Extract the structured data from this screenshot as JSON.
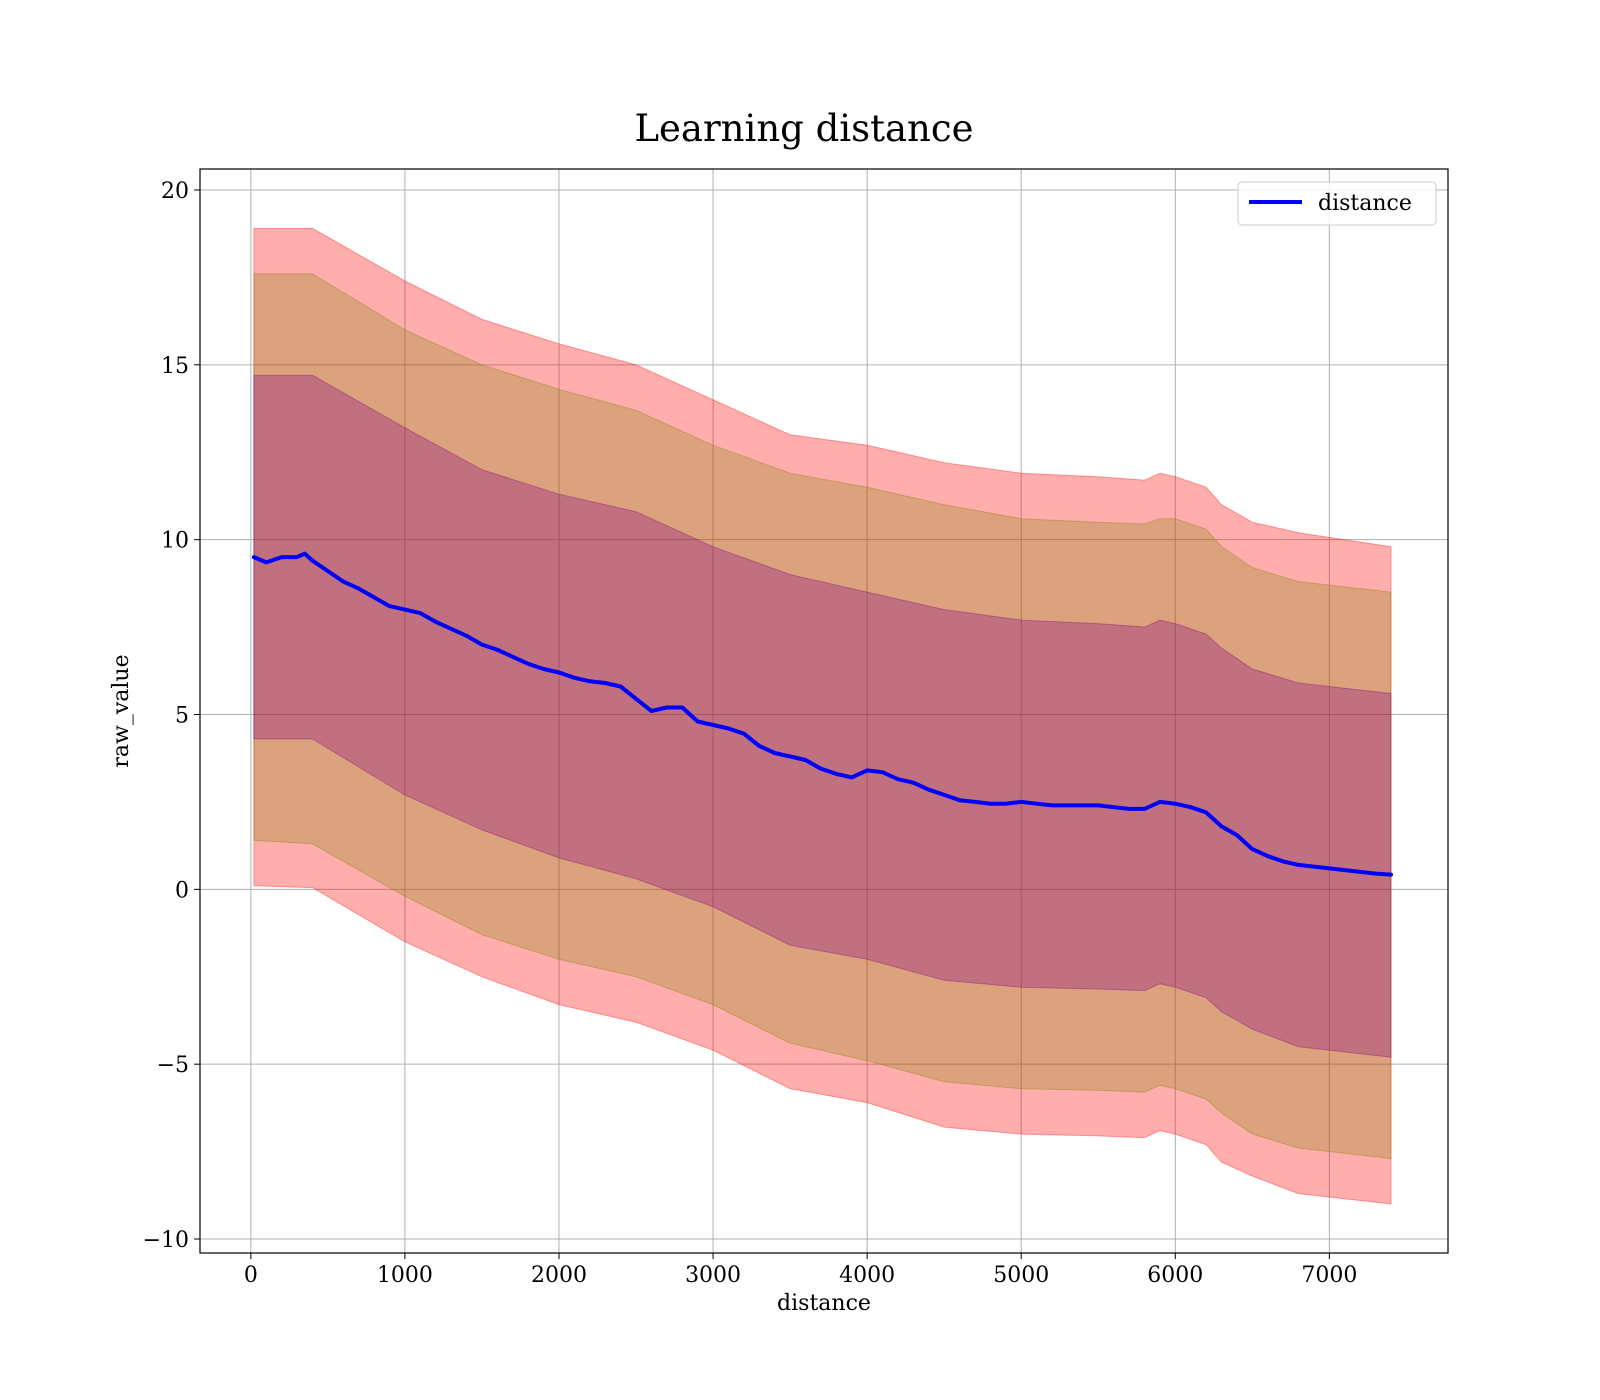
{
  "chart_data": {
    "type": "line",
    "title": "Learning distance",
    "xlabel": "distance",
    "ylabel": "raw_value",
    "xlim": [
      -330,
      7770
    ],
    "ylim": [
      -10.4,
      20.6
    ],
    "xticks": [
      0,
      1000,
      2000,
      3000,
      4000,
      5000,
      6000,
      7000
    ],
    "yticks": [
      -10,
      -5,
      0,
      5,
      10,
      15,
      20
    ],
    "ytick_labels": [
      "−10",
      "−5",
      "0",
      "5",
      "10",
      "15",
      "20"
    ],
    "grid": true,
    "legend_position": "top-right",
    "series": [
      {
        "name": "distance",
        "color": "#0000ff",
        "x": [
          20,
          100,
          200,
          300,
          350,
          400,
          500,
          600,
          700,
          800,
          900,
          1000,
          1100,
          1200,
          1300,
          1400,
          1500,
          1600,
          1700,
          1800,
          1900,
          2000,
          2100,
          2200,
          2300,
          2400,
          2500,
          2600,
          2700,
          2800,
          2900,
          3000,
          3100,
          3200,
          3300,
          3400,
          3500,
          3600,
          3700,
          3800,
          3900,
          4000,
          4100,
          4200,
          4300,
          4400,
          4500,
          4600,
          4700,
          4800,
          4900,
          5000,
          5100,
          5200,
          5300,
          5400,
          5500,
          5600,
          5700,
          5800,
          5900,
          6000,
          6100,
          6200,
          6300,
          6400,
          6500,
          6600,
          6700,
          6800,
          6900,
          7000,
          7100,
          7200,
          7300,
          7400
        ],
        "values": [
          9.5,
          9.35,
          9.5,
          9.5,
          9.6,
          9.4,
          9.1,
          8.8,
          8.6,
          8.35,
          8.1,
          8.0,
          7.9,
          7.65,
          7.45,
          7.25,
          7.0,
          6.85,
          6.65,
          6.45,
          6.3,
          6.2,
          6.05,
          5.95,
          5.9,
          5.8,
          5.45,
          5.1,
          5.2,
          5.2,
          4.8,
          4.7,
          4.6,
          4.45,
          4.1,
          3.9,
          3.8,
          3.7,
          3.45,
          3.3,
          3.2,
          3.4,
          3.35,
          3.15,
          3.05,
          2.85,
          2.7,
          2.55,
          2.5,
          2.45,
          2.45,
          2.5,
          2.45,
          2.4,
          2.4,
          2.4,
          2.4,
          2.35,
          2.3,
          2.3,
          2.5,
          2.45,
          2.35,
          2.2,
          1.8,
          1.55,
          1.15,
          0.95,
          0.8,
          0.7,
          0.65,
          0.6,
          0.55,
          0.5,
          0.45,
          0.42
        ]
      }
    ],
    "bands": [
      {
        "color": "#ff0000",
        "opacity": 0.32,
        "x": [
          20,
          400,
          1000,
          1500,
          2000,
          2500,
          3000,
          3500,
          4000,
          4500,
          5000,
          5500,
          5800,
          5900,
          6000,
          6200,
          6300,
          6500,
          6800,
          7400
        ],
        "upper": [
          18.9,
          18.9,
          17.4,
          16.3,
          15.6,
          15.0,
          14.0,
          13.0,
          12.7,
          12.2,
          11.9,
          11.8,
          11.7,
          11.9,
          11.8,
          11.5,
          11.0,
          10.5,
          10.2,
          9.8
        ],
        "lower": [
          0.1,
          0.05,
          -1.5,
          -2.5,
          -3.3,
          -3.8,
          -4.6,
          -5.7,
          -6.1,
          -6.8,
          -7.0,
          -7.05,
          -7.1,
          -6.9,
          -7.0,
          -7.3,
          -7.8,
          -8.2,
          -8.7,
          -9.0
        ]
      },
      {
        "color": "#808000",
        "opacity": 0.28,
        "x": [
          20,
          400,
          1000,
          1500,
          2000,
          2500,
          3000,
          3500,
          4000,
          4500,
          5000,
          5500,
          5800,
          5900,
          6000,
          6200,
          6300,
          6500,
          6800,
          7400
        ],
        "upper": [
          17.6,
          17.6,
          16.0,
          15.0,
          14.3,
          13.7,
          12.7,
          11.9,
          11.5,
          11.0,
          10.6,
          10.5,
          10.45,
          10.6,
          10.6,
          10.3,
          9.8,
          9.2,
          8.8,
          8.5
        ],
        "lower": [
          1.4,
          1.3,
          -0.2,
          -1.3,
          -2.0,
          -2.5,
          -3.3,
          -4.4,
          -4.9,
          -5.5,
          -5.7,
          -5.75,
          -5.8,
          -5.6,
          -5.7,
          -6.0,
          -6.4,
          -7.0,
          -7.4,
          -7.7
        ]
      },
      {
        "color": "#800080",
        "opacity": 0.3,
        "x": [
          20,
          400,
          1000,
          1500,
          2000,
          2500,
          3000,
          3500,
          4000,
          4500,
          5000,
          5500,
          5800,
          5900,
          6000,
          6200,
          6300,
          6500,
          6800,
          7400
        ],
        "upper": [
          14.7,
          14.7,
          13.2,
          12.0,
          11.3,
          10.8,
          9.8,
          9.0,
          8.5,
          8.0,
          7.7,
          7.6,
          7.5,
          7.7,
          7.6,
          7.3,
          6.9,
          6.3,
          5.9,
          5.6
        ],
        "lower": [
          4.3,
          4.3,
          2.7,
          1.7,
          0.9,
          0.3,
          -0.5,
          -1.6,
          -2.0,
          -2.6,
          -2.8,
          -2.85,
          -2.9,
          -2.7,
          -2.8,
          -3.1,
          -3.5,
          -4.0,
          -4.5,
          -4.8
        ]
      }
    ]
  }
}
